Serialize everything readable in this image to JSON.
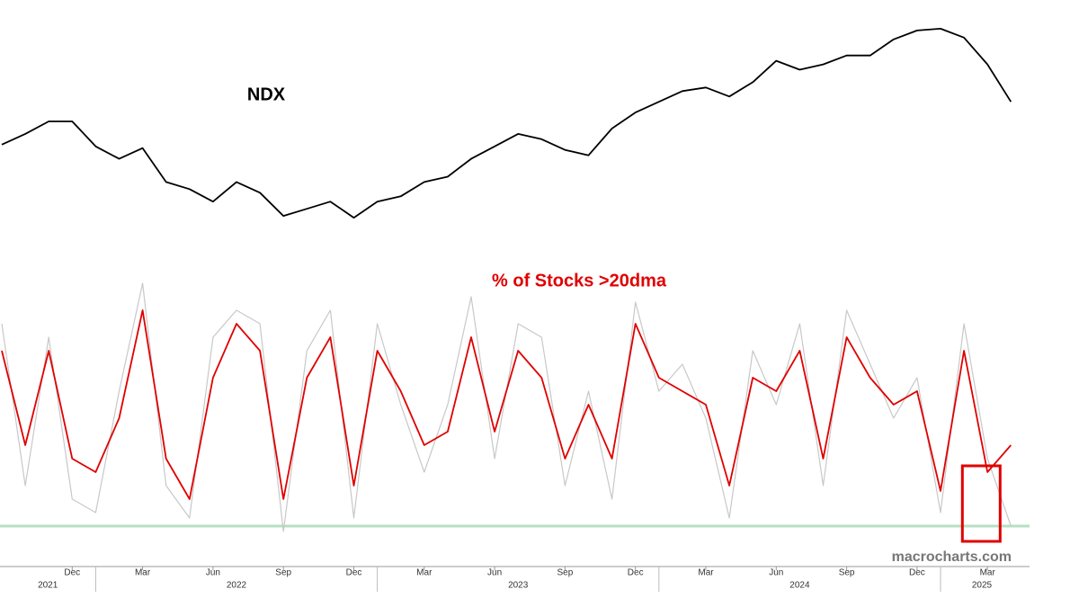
{
  "chart_data": [
    {
      "type": "line",
      "title": "NDX",
      "x": [
        "2021-09",
        "2021-10",
        "2021-11",
        "2021-12",
        "2022-01",
        "2022-02",
        "2022-03",
        "2022-04",
        "2022-05",
        "2022-06",
        "2022-07",
        "2022-08",
        "2022-09",
        "2022-10",
        "2022-11",
        "2022-12",
        "2023-01",
        "2023-02",
        "2023-03",
        "2023-04",
        "2023-05",
        "2023-06",
        "2023-07",
        "2023-08",
        "2023-09",
        "2023-10",
        "2023-11",
        "2023-12",
        "2024-01",
        "2024-02",
        "2024-03",
        "2024-04",
        "2024-05",
        "2024-06",
        "2024-07",
        "2024-08",
        "2024-09",
        "2024-10",
        "2024-11",
        "2024-12",
        "2025-01",
        "2025-02",
        "2025-03",
        "2025-04"
      ],
      "series": [
        {
          "name": "NDX",
          "color": "#000000",
          "values": [
            15000,
            15600,
            16300,
            16300,
            14900,
            14200,
            14800,
            12900,
            12500,
            11800,
            12900,
            12300,
            11000,
            11400,
            11800,
            10900,
            11800,
            12100,
            12900,
            13200,
            14200,
            14900,
            15600,
            15300,
            14700,
            14400,
            15900,
            16800,
            17400,
            18000,
            18200,
            17700,
            18500,
            19700,
            19200,
            19500,
            20000,
            20000,
            20900,
            21400,
            21500,
            21000,
            19500,
            17400
          ]
        }
      ],
      "ylim": [
        10500,
        22000
      ]
    },
    {
      "type": "line",
      "title": "% of Stocks >20dma",
      "x": [
        "2021-09",
        "2021-10",
        "2021-11",
        "2021-12",
        "2022-01",
        "2022-02",
        "2022-03",
        "2022-04",
        "2022-05",
        "2022-06",
        "2022-07",
        "2022-08",
        "2022-09",
        "2022-10",
        "2022-11",
        "2022-12",
        "2023-01",
        "2023-02",
        "2023-03",
        "2023-04",
        "2023-05",
        "2023-06",
        "2023-07",
        "2023-08",
        "2023-09",
        "2023-10",
        "2023-11",
        "2023-12",
        "2024-01",
        "2024-02",
        "2024-03",
        "2024-04",
        "2024-05",
        "2024-06",
        "2024-07",
        "2024-08",
        "2024-09",
        "2024-10",
        "2024-11",
        "2024-12",
        "2025-01",
        "2025-02",
        "2025-03",
        "2025-04"
      ],
      "series": [
        {
          "color": "#c8c8c8",
          "values": [
            80,
            20,
            75,
            15,
            10,
            55,
            95,
            20,
            8,
            75,
            85,
            80,
            3,
            70,
            85,
            8,
            80,
            50,
            25,
            50,
            90,
            30,
            80,
            75,
            20,
            55,
            15,
            88,
            55,
            65,
            45,
            8,
            70,
            50,
            80,
            20,
            85,
            65,
            45,
            60,
            10,
            80,
            30,
            5
          ]
        },
        {
          "color": "#e00000",
          "values": [
            70,
            35,
            70,
            30,
            25,
            45,
            85,
            30,
            15,
            60,
            80,
            70,
            15,
            60,
            75,
            20,
            70,
            55,
            35,
            40,
            75,
            40,
            70,
            60,
            30,
            50,
            30,
            80,
            60,
            55,
            50,
            20,
            60,
            55,
            70,
            30,
            75,
            60,
            50,
            55,
            18,
            70,
            25,
            35
          ]
        }
      ],
      "ylim": [
        0,
        100
      ],
      "hline": 5,
      "hline_color": "#b7dfc4",
      "annotation": "macrocharts.com",
      "xticks": [
        {
          "value": "2021-12",
          "label": "Dec"
        },
        {
          "value": "2022-03",
          "label": "Mar"
        },
        {
          "value": "2022-06",
          "label": "Jun"
        },
        {
          "value": "2022-09",
          "label": "Sep"
        },
        {
          "value": "2022-12",
          "label": "Dec"
        },
        {
          "value": "2023-03",
          "label": "Mar"
        },
        {
          "value": "2023-06",
          "label": "Jun"
        },
        {
          "value": "2023-09",
          "label": "Sep"
        },
        {
          "value": "2023-12",
          "label": "Dec"
        },
        {
          "value": "2024-03",
          "label": "Mar"
        },
        {
          "value": "2024-06",
          "label": "Jun"
        },
        {
          "value": "2024-09",
          "label": "Sep"
        },
        {
          "value": "2024-12",
          "label": "Dec"
        },
        {
          "value": "2025-03",
          "label": "Mar"
        }
      ],
      "years": [
        "2021",
        "2022",
        "2023",
        "2024",
        "2025"
      ]
    }
  ]
}
